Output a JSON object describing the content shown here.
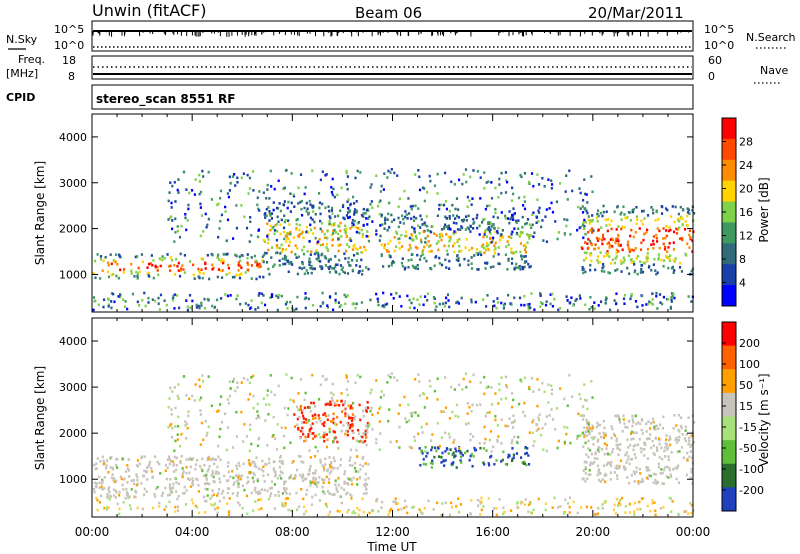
{
  "header": {
    "radar": "Unwin (fitACF)",
    "beam": "Beam 06",
    "date": "20/Mar/2011"
  },
  "strips": {
    "nsky_label": "N.Sky",
    "nsky_ticks": [
      "10^5",
      "10^0"
    ],
    "nsearch_label": "N.Search",
    "nsearch_ticks": [
      "10^5",
      "10^0"
    ],
    "freq_label": "Freq.",
    "freq_unit": "[MHz]",
    "freq_ticks": [
      "18",
      "8"
    ],
    "nave_label": "Nave",
    "nave_ticks": [
      "60",
      "0"
    ],
    "cpid_label": "CPID",
    "cpid_text": "stereo_scan 8551 RF"
  },
  "chart_data": [
    {
      "type": "heatmap",
      "name": "power",
      "ylabel": "Slant Range [km]",
      "yticks": [
        "4000",
        "3000",
        "2000",
        "1000"
      ],
      "ylim": [
        180,
        4500
      ],
      "x": [
        "00:00",
        "04:00",
        "08:00",
        "12:00",
        "16:00",
        "20:00",
        "00:00"
      ],
      "colorbar": {
        "label": "Power [dB]",
        "ticks": [
          "28",
          "24",
          "20",
          "16",
          "12",
          "8",
          "4"
        ],
        "colors": [
          "#0000ff",
          "#1a3fa8",
          "#2f6b7a",
          "#3f9a62",
          "#7fd14a",
          "#ffd200",
          "#ff8c00",
          "#ff4a00",
          "#ff0000"
        ]
      },
      "bands": [
        {
          "t0": 0.0,
          "t1": 6.8,
          "r0": 900,
          "r1": 1450,
          "level": "high"
        },
        {
          "t0": 6.8,
          "t1": 11.0,
          "r0": 1000,
          "r1": 2600,
          "level": "mid"
        },
        {
          "t0": 11.5,
          "t1": 17.5,
          "r0": 1100,
          "r1": 2300,
          "level": "mid"
        },
        {
          "t0": 19.5,
          "t1": 24.0,
          "r0": 1000,
          "r1": 2500,
          "level": "high"
        }
      ]
    },
    {
      "type": "heatmap",
      "name": "velocity",
      "ylabel": "Slant Range [km]",
      "yticks": [
        "4000",
        "3000",
        "2000",
        "1000"
      ],
      "ylim": [
        180,
        4500
      ],
      "xlabel": "Time UT",
      "x": [
        "00:00",
        "04:00",
        "08:00",
        "12:00",
        "16:00",
        "20:00",
        "00:00"
      ],
      "colorbar": {
        "label": "Velocity [m s⁻¹]",
        "ticks": [
          "200",
          "100",
          "50",
          "15",
          "-15",
          "-50",
          "-100",
          "-200"
        ],
        "colors": [
          "#2040c0",
          "#2b6e2e",
          "#5fbf3a",
          "#a8e07a",
          "#c8c4bb",
          "#ffa000",
          "#ff6000",
          "#ff0000"
        ]
      },
      "bands": [
        {
          "t0": 0.0,
          "t1": 11.0,
          "r0": 600,
          "r1": 1500,
          "level": "grey"
        },
        {
          "t0": 8.0,
          "t1": 11.0,
          "r0": 1800,
          "r1": 2700,
          "level": "red"
        },
        {
          "t0": 13.0,
          "t1": 17.5,
          "r0": 1250,
          "r1": 1700,
          "level": "blue"
        },
        {
          "t0": 19.5,
          "t1": 24.0,
          "r0": 900,
          "r1": 2400,
          "level": "grey"
        }
      ]
    }
  ]
}
